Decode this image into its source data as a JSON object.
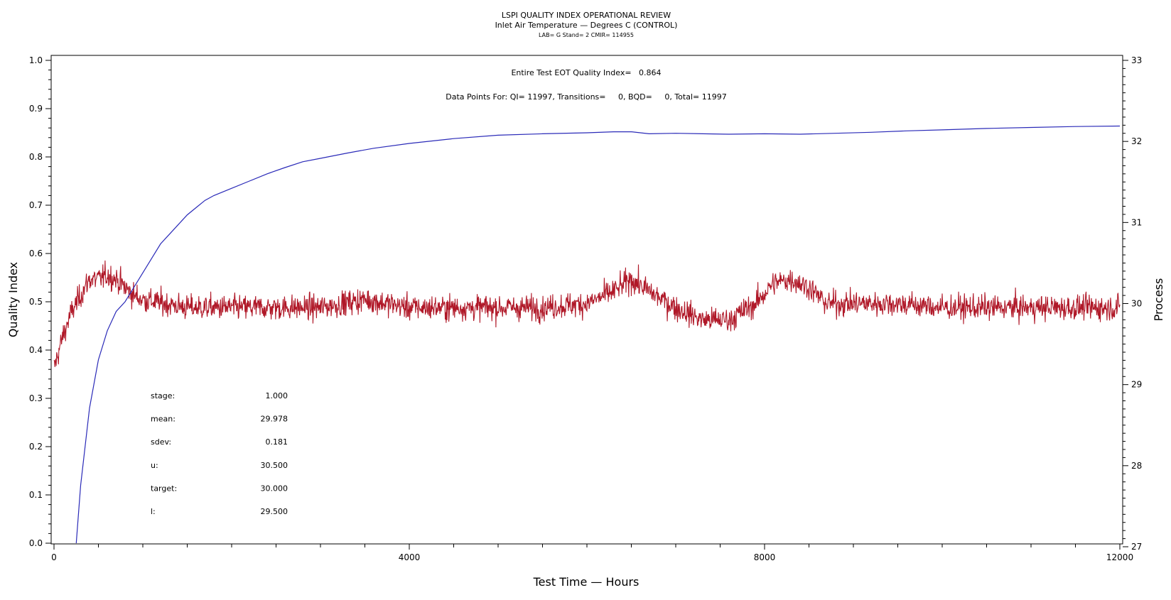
{
  "chart_data": {
    "type": "line",
    "title": "LSPI QUALITY INDEX OPERATIONAL REVIEW",
    "subtitle": "Inlet Air Temperature — Degrees C (CONTROL)",
    "subsubtitle": "LAB= G Stand= 2 CMIR= 114955",
    "annotation_eot": "Entire Test EOT Quality Index=   0.864",
    "annotation_points": "Data Points For: QI= 11997, Transitions=     0, BQD=     0, Total= 11997",
    "xlabel": "Test Time — Hours",
    "ylabel_left": "Quality Index",
    "ylabel_right": "Process",
    "xlim": [
      0,
      12000
    ],
    "ylim_left": [
      0,
      1.0
    ],
    "ylim_right": [
      27,
      33
    ],
    "x_tick_labels": [
      "0",
      "4000",
      "8000",
      "12000"
    ],
    "x_tick_values": [
      0,
      4000,
      8000,
      12000
    ],
    "y_left_tick_labels": [
      "0.0",
      "0.1",
      "0.2",
      "0.3",
      "0.4",
      "0.5",
      "0.6",
      "0.7",
      "0.8",
      "0.9",
      "1.0"
    ],
    "y_left_tick_values": [
      0,
      0.1,
      0.2,
      0.3,
      0.4,
      0.5,
      0.6,
      0.7,
      0.8,
      0.9,
      1.0
    ],
    "y_right_tick_labels": [
      "27",
      "28",
      "29",
      "30",
      "31",
      "32",
      "33"
    ],
    "y_right_tick_values": [
      27,
      28,
      29,
      30,
      31,
      32,
      33
    ],
    "series": [
      {
        "axis": "left",
        "color": "#2a2ab8",
        "x": [
          250,
          300,
          400,
          500,
          600,
          700,
          800,
          900,
          1000,
          1100,
          1200,
          1300,
          1400,
          1500,
          1600,
          1700,
          1800,
          2000,
          2200,
          2400,
          2600,
          2800,
          3000,
          3300,
          3600,
          4000,
          4500,
          5000,
          5500,
          6000,
          6300,
          6500,
          6700,
          7000,
          7300,
          7600,
          8000,
          8400,
          8800,
          9200,
          9600,
          10000,
          10500,
          11000,
          11500,
          12000
        ],
        "values": [
          0.0,
          0.12,
          0.28,
          0.38,
          0.44,
          0.48,
          0.5,
          0.53,
          0.56,
          0.59,
          0.62,
          0.64,
          0.66,
          0.68,
          0.695,
          0.71,
          0.72,
          0.735,
          0.75,
          0.765,
          0.778,
          0.79,
          0.797,
          0.808,
          0.818,
          0.828,
          0.838,
          0.845,
          0.848,
          0.85,
          0.852,
          0.852,
          0.848,
          0.849,
          0.848,
          0.847,
          0.848,
          0.847,
          0.849,
          0.851,
          0.854,
          0.856,
          0.859,
          0.861,
          0.863,
          0.864
        ]
      },
      {
        "axis": "right",
        "color": "#b01828",
        "x": [
          0,
          100,
          200,
          300,
          400,
          500,
          600,
          700,
          800,
          900,
          1000,
          1500,
          2000,
          3000,
          3500,
          4000,
          4500,
          5000,
          5500,
          6000,
          6300,
          6500,
          6700,
          7000,
          7300,
          7600,
          7900,
          8100,
          8300,
          8500,
          8700,
          9000,
          9500,
          10000,
          10500,
          11000,
          11500,
          12000
        ],
        "values": [
          29.2,
          29.6,
          29.9,
          30.1,
          30.3,
          30.3,
          30.35,
          30.3,
          30.2,
          30.1,
          30.05,
          29.95,
          29.95,
          29.95,
          30.05,
          29.95,
          29.95,
          29.95,
          29.95,
          30.0,
          30.15,
          30.3,
          30.15,
          29.95,
          29.8,
          29.8,
          30.0,
          30.25,
          30.3,
          30.2,
          30.0,
          30.0,
          30.0,
          29.95,
          29.95,
          29.95,
          29.95,
          29.95
        ],
        "noise_sd": 0.181
      }
    ],
    "stats_labels": [
      "stage:",
      "mean:",
      "sdev:",
      "u:",
      "target:",
      "l:"
    ],
    "stats_values": [
      "1.000",
      "29.978",
      "0.181",
      "30.500",
      "30.000",
      "29.500"
    ]
  }
}
